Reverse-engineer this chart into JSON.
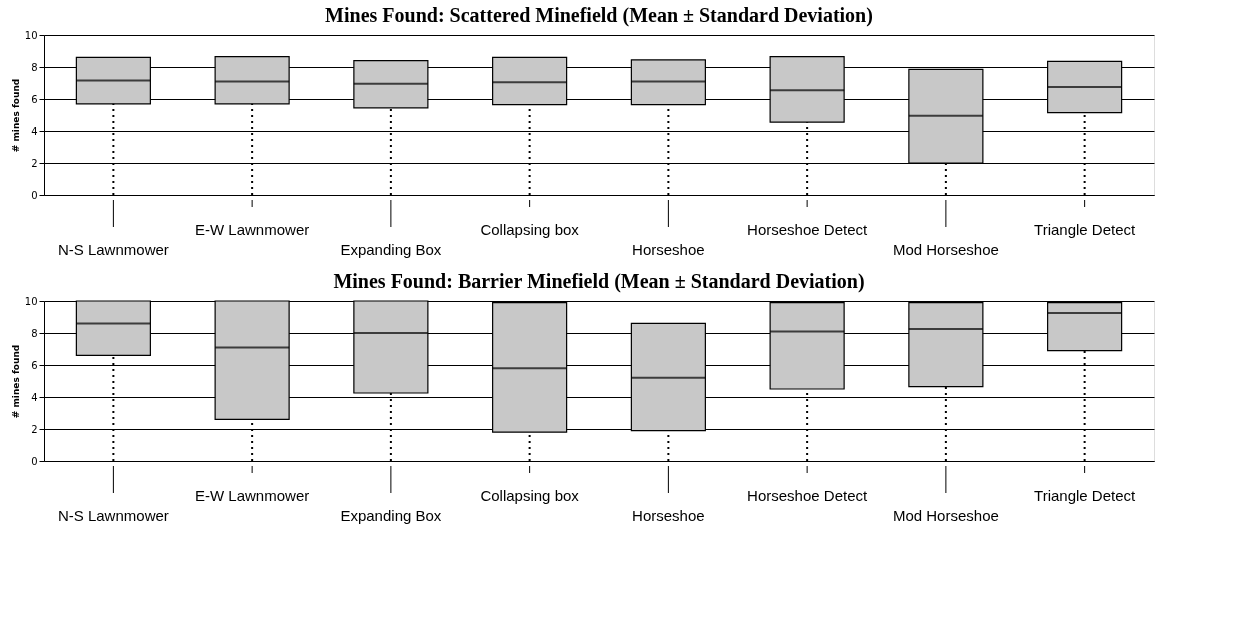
{
  "chart_data": [
    {
      "type": "box",
      "title": "Mines Found:  Scattered Minefield  (Mean ± Standard Deviation)",
      "ylabel": "# mines found",
      "categories": [
        "N-S Lawnmower",
        "E-W Lawnmower",
        "Expanding Box",
        "Collapsing box",
        "Horseshoe",
        "Horseshoe Detect",
        "Mod Horseshoe",
        "Triangle Detect"
      ],
      "boxes": [
        {
          "low": 0,
          "q1": 5.7,
          "median": 7.15,
          "q3": 8.6,
          "high": 8.6
        },
        {
          "low": 0,
          "q1": 5.7,
          "median": 7.1,
          "q3": 8.65,
          "high": 8.65
        },
        {
          "low": 0,
          "q1": 5.45,
          "median": 6.95,
          "q3": 8.4,
          "high": 8.4
        },
        {
          "low": 0,
          "q1": 5.65,
          "median": 7.05,
          "q3": 8.6,
          "high": 8.6
        },
        {
          "low": 0,
          "q1": 5.65,
          "median": 7.1,
          "q3": 8.45,
          "high": 8.45
        },
        {
          "low": 0,
          "q1": 4.55,
          "median": 6.55,
          "q3": 8.65,
          "high": 8.65
        },
        {
          "low": 0,
          "q1": 2.0,
          "median": 4.95,
          "q3": 7.85,
          "high": 7.85
        },
        {
          "low": 0,
          "q1": 5.15,
          "median": 6.75,
          "q3": 8.35,
          "high": 8.35
        }
      ],
      "color": "#c8c8c8",
      "ylim": [
        0,
        10
      ],
      "yticks": [
        0,
        2,
        4,
        6,
        8,
        10
      ],
      "grid": "y"
    },
    {
      "type": "box",
      "title": "Mines Found:  Barrier Minefield  (Mean ± Standard Deviation)",
      "ylabel": "# mines found",
      "categories": [
        "N-S Lawnmower",
        "E-W Lawnmower",
        "Expanding Box",
        "Collapsing box",
        "Horseshoe",
        "Horseshoe Detect",
        "Mod Horseshoe",
        "Triangle Detect"
      ],
      "boxes": [
        {
          "low": 0,
          "q1": 6.6,
          "median": 8.6,
          "q3": 10,
          "high": 10
        },
        {
          "low": 0,
          "q1": 2.6,
          "median": 7.1,
          "q3": 10,
          "high": 10
        },
        {
          "low": 0,
          "q1": 4.25,
          "median": 8.0,
          "q3": 10,
          "high": 10
        },
        {
          "low": 0,
          "q1": 1.8,
          "median": 5.8,
          "q3": 9.9,
          "high": 9.9
        },
        {
          "low": 0,
          "q1": 1.9,
          "median": 5.2,
          "q3": 8.6,
          "high": 8.6
        },
        {
          "low": 0,
          "q1": 4.5,
          "median": 8.1,
          "q3": 9.9,
          "high": 9.9
        },
        {
          "low": 0,
          "q1": 4.65,
          "median": 8.25,
          "q3": 9.9,
          "high": 9.9
        },
        {
          "low": 0,
          "q1": 6.9,
          "median": 9.25,
          "q3": 9.9,
          "high": 9.9
        }
      ],
      "color": "#c8c8c8",
      "ylim": [
        0,
        10
      ],
      "yticks": [
        0,
        2,
        4,
        6,
        8,
        10
      ],
      "grid": "y"
    }
  ]
}
